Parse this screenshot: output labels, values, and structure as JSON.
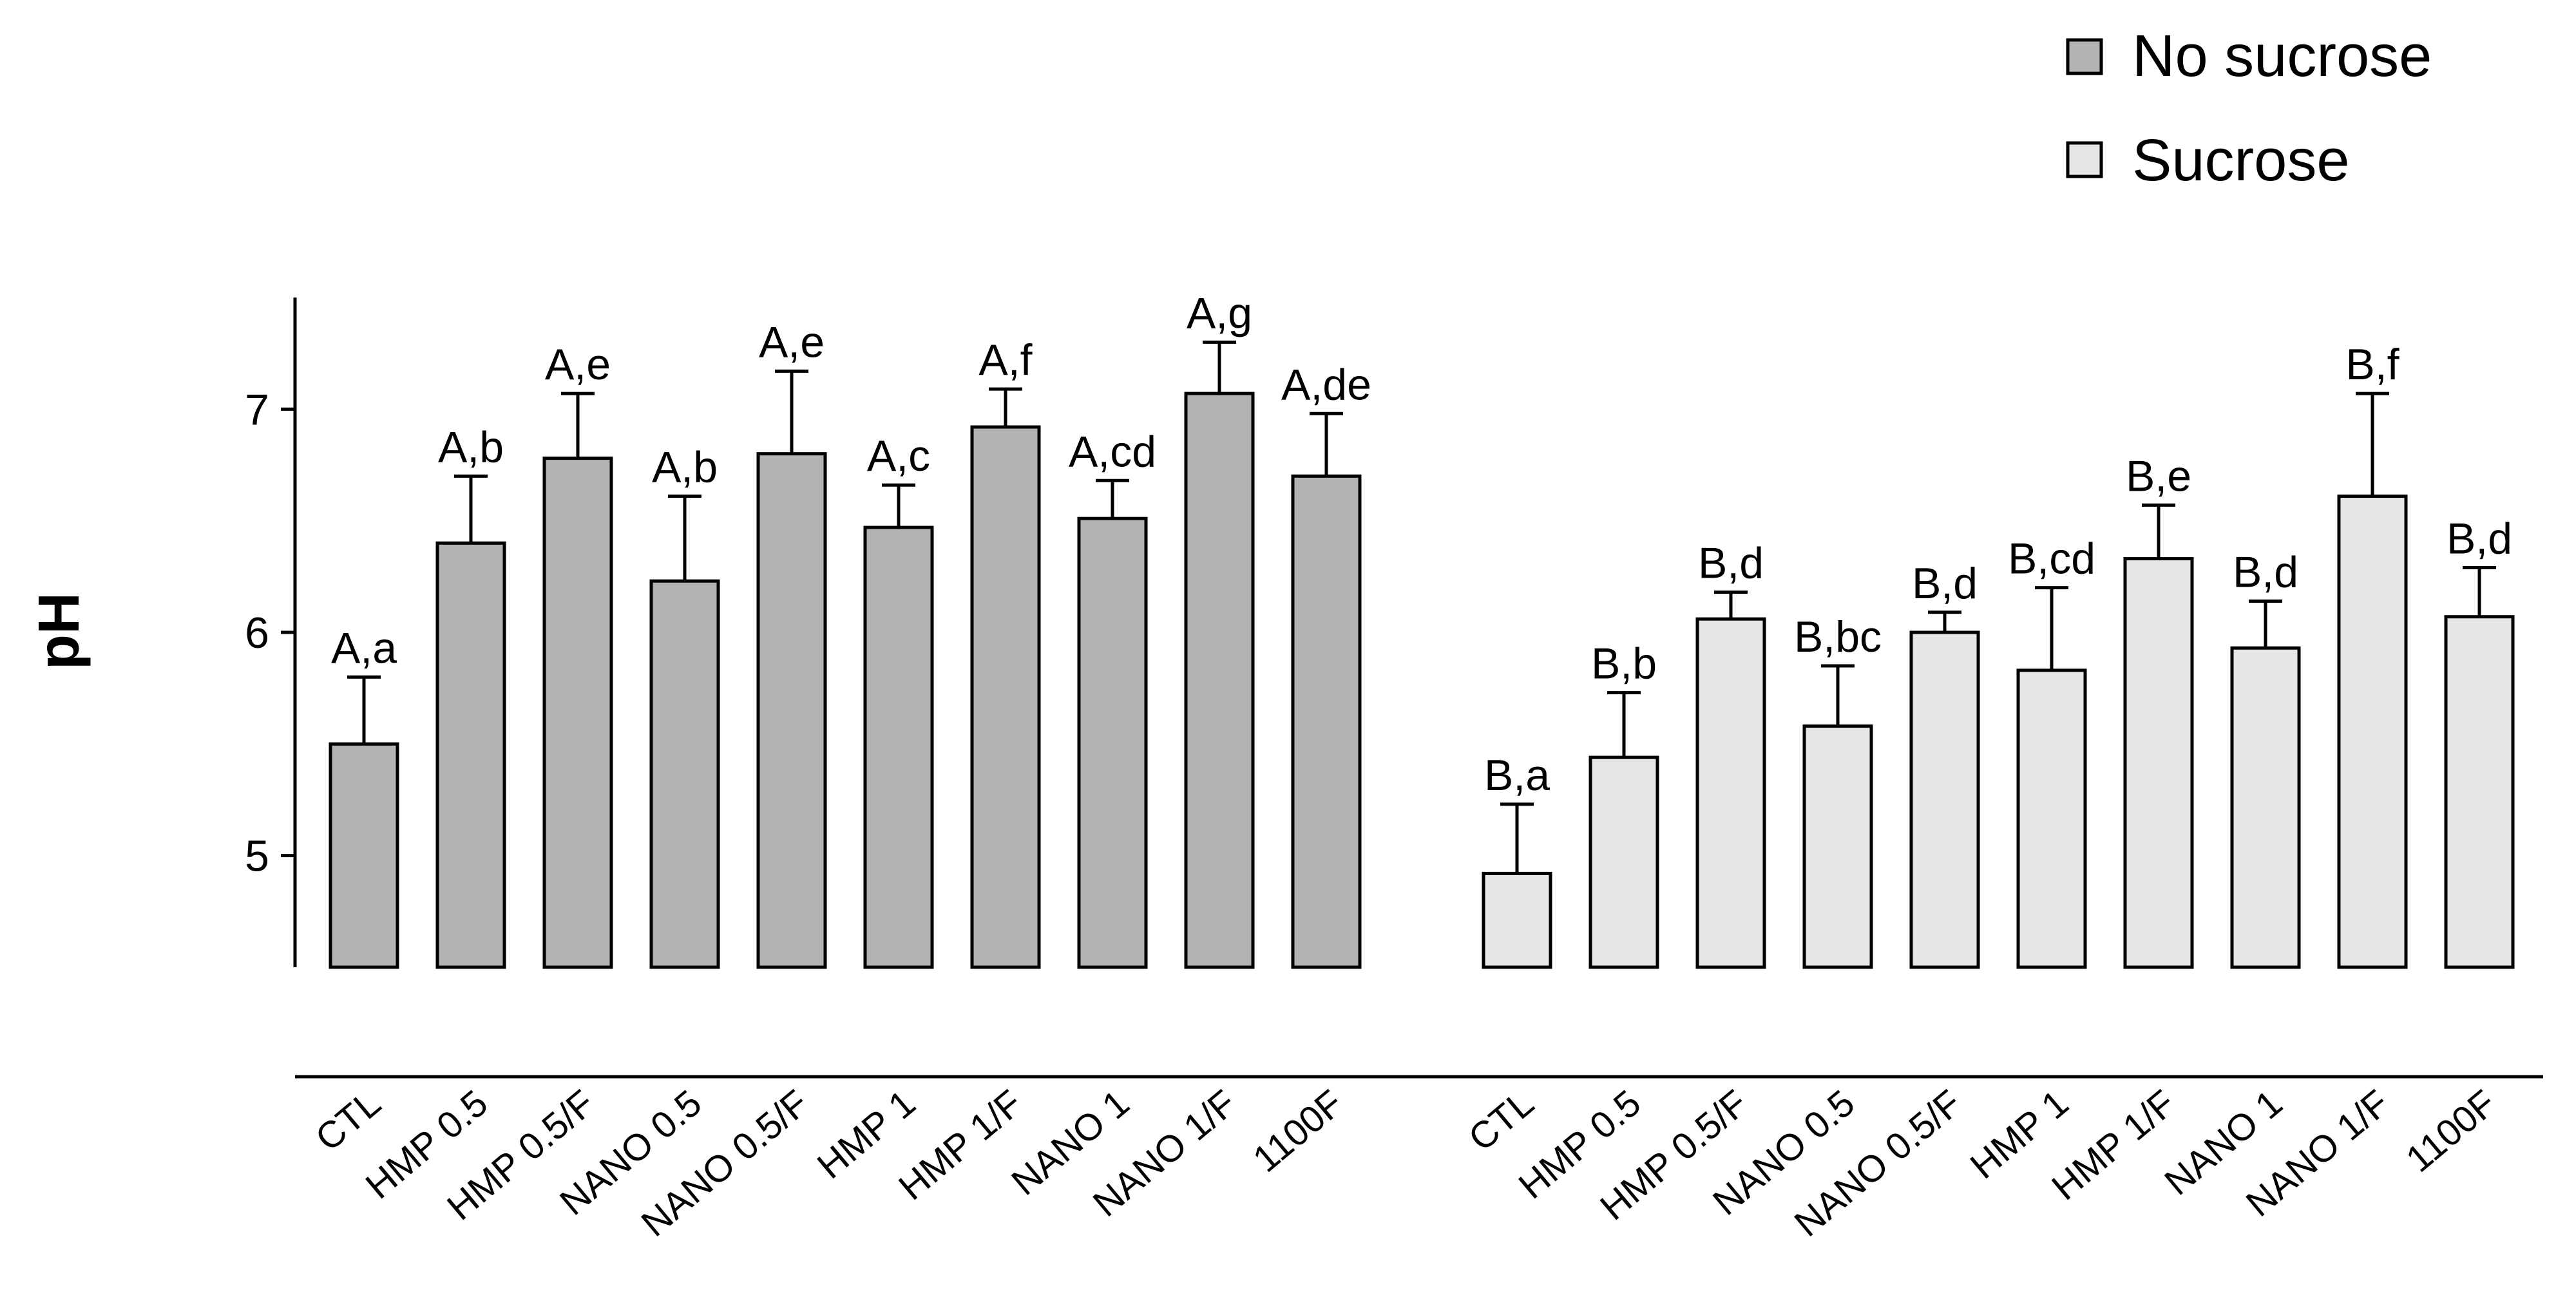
{
  "chart_data": {
    "type": "bar",
    "title": "",
    "xlabel": "",
    "ylabel": "pH",
    "ylim": [
      4.5,
      7.5
    ],
    "yticks": [
      5,
      6,
      7
    ],
    "grid": false,
    "legend_position": "top-right",
    "categories": [
      "CTL",
      "HMP 0.5",
      "HMP 0.5/F",
      "NANO 0.5",
      "NANO 0.5/F",
      "HMP 1",
      "HMP 1/F",
      "NANO 1",
      "NANO 1/F",
      "1100F"
    ],
    "series": [
      {
        "name": "No sucrose",
        "color": "#b3b3b3",
        "values": [
          5.5,
          6.4,
          6.78,
          6.23,
          6.8,
          6.47,
          6.92,
          6.51,
          7.07,
          6.7
        ],
        "errors": [
          0.3,
          0.3,
          0.29,
          0.38,
          0.37,
          0.19,
          0.17,
          0.17,
          0.23,
          0.28
        ],
        "labels": [
          "A,a",
          "A,b",
          "A,e",
          "A,b",
          "A,e",
          "A,c",
          "A,f",
          "A,cd",
          "A,g",
          "A,de"
        ]
      },
      {
        "name": "Sucrose",
        "color": "#e6e6e6",
        "values": [
          4.92,
          5.44,
          6.06,
          5.58,
          6.0,
          5.83,
          6.33,
          5.93,
          6.61,
          6.07
        ],
        "errors": [
          0.31,
          0.29,
          0.12,
          0.27,
          0.09,
          0.37,
          0.24,
          0.21,
          0.46,
          0.22
        ],
        "labels": [
          "B,a",
          "B,b",
          "B,d",
          "B,bc",
          "B,d",
          "B,cd",
          "B,e",
          "B,d",
          "B,f",
          "B,d"
        ]
      }
    ]
  }
}
